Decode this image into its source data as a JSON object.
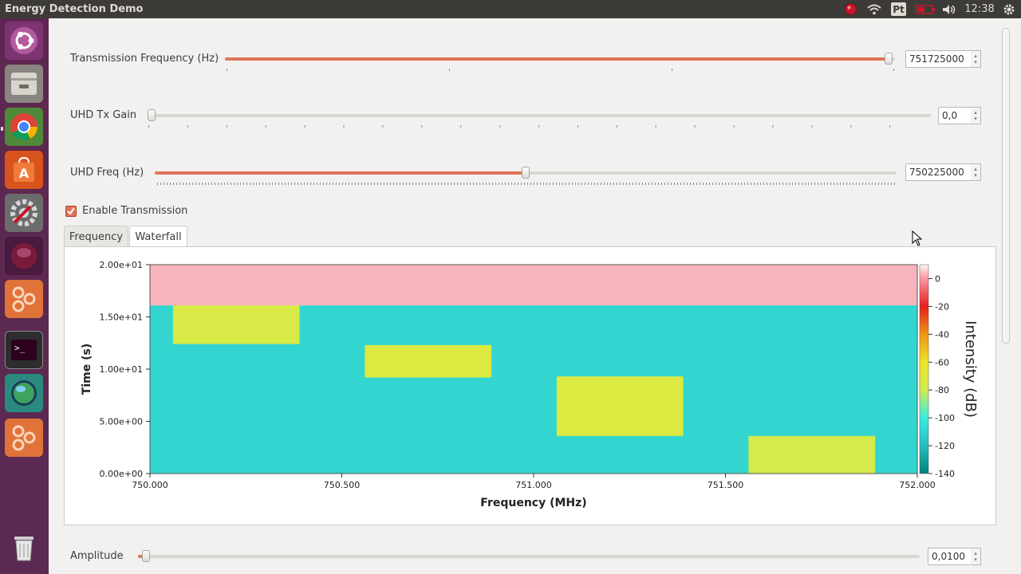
{
  "topbar": {
    "app_title": "Energy Detection Demo",
    "keyboard_layout": "Pt",
    "clock": "12:38",
    "icons": [
      "record-icon",
      "wifi-icon",
      "keyboard-icon",
      "battery-icon",
      "volume-icon",
      "gear-icon"
    ]
  },
  "launcher": {
    "items": [
      "ubuntu-logo-icon",
      "files-icon",
      "chrome-icon",
      "software-center-icon",
      "system-settings-icon",
      "record-app-icon",
      "gnuradio-icon",
      "terminal-icon",
      "globe-icon",
      "gnuradio-icon-2",
      "trash-icon"
    ]
  },
  "controls": {
    "tx_freq": {
      "label": "Transmission Frequency (Hz)",
      "value": "751725000",
      "fraction": 0.99
    },
    "tx_gain": {
      "label": "UHD Tx Gain",
      "value": "0,0",
      "fraction": 0.0
    },
    "uhd_freq": {
      "label": "UHD Freq (Hz)",
      "value": "750225000",
      "fraction": 0.5
    },
    "enable_tx": {
      "label": "Enable Transmission",
      "checked": true
    },
    "amplitude": {
      "label": "Amplitude",
      "value": "0,0100",
      "fraction": 0.01
    }
  },
  "tabs": [
    {
      "label": "Frequency",
      "active": false
    },
    {
      "label": "Waterfall",
      "active": true
    }
  ],
  "chart_data": {
    "type": "heatmap",
    "xlabel": "Frequency (MHz)",
    "ylabel": "Time (s)",
    "colorbar_label": "Intensity (dB)",
    "x_ticks": [
      "750.000",
      "750.500",
      "751.000",
      "751.500",
      "752.000"
    ],
    "y_ticks": [
      "0.00e+00",
      "5.00e+00",
      "1.00e+01",
      "1.50e+01",
      "2.00e+01"
    ],
    "colorbar_ticks": [
      "0",
      "-20",
      "-40",
      "-60",
      "-80",
      "-100",
      "-120",
      "-140"
    ],
    "xlim": [
      750.0,
      752.0
    ],
    "ylim": [
      0,
      20
    ],
    "clim": [
      -140,
      10
    ],
    "background_db": -110,
    "empty_region": {
      "y_from": 16.1,
      "y_to": 20.0
    },
    "bursts": [
      {
        "f_start": 750.06,
        "f_end": 750.39,
        "t_start": 12.4,
        "t_end": 16.1,
        "db": -75
      },
      {
        "f_start": 750.56,
        "f_end": 750.89,
        "t_start": 9.2,
        "t_end": 12.3,
        "db": -72
      },
      {
        "f_start": 751.06,
        "f_end": 751.39,
        "t_start": 3.6,
        "t_end": 9.3,
        "db": -72
      },
      {
        "f_start": 751.56,
        "f_end": 751.89,
        "t_start": 0.0,
        "t_end": 3.6,
        "db": -78
      }
    ]
  }
}
